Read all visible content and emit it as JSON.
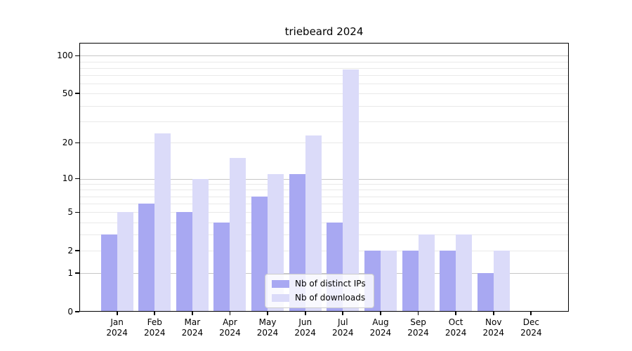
{
  "title": "triebeard 2024",
  "legend": [
    {
      "label": "Nb of distinct IPs",
      "color": "#a8a8f2"
    },
    {
      "label": "Nb of downloads",
      "color": "#dbdbf9"
    }
  ],
  "chart_data": {
    "type": "bar",
    "title": "triebeard 2024",
    "categories": [
      {
        "month": "Jan",
        "year": "2024"
      },
      {
        "month": "Feb",
        "year": "2024"
      },
      {
        "month": "Mar",
        "year": "2024"
      },
      {
        "month": "Apr",
        "year": "2024"
      },
      {
        "month": "May",
        "year": "2024"
      },
      {
        "month": "Jun",
        "year": "2024"
      },
      {
        "month": "Jul",
        "year": "2024"
      },
      {
        "month": "Aug",
        "year": "2024"
      },
      {
        "month": "Sep",
        "year": "2024"
      },
      {
        "month": "Oct",
        "year": "2024"
      },
      {
        "month": "Nov",
        "year": "2024"
      },
      {
        "month": "Dec",
        "year": "2024"
      }
    ],
    "series": [
      {
        "name": "Nb of distinct IPs",
        "color": "#a8a8f2",
        "values": [
          3,
          6,
          5,
          4,
          7,
          11,
          4,
          2,
          2,
          2,
          1,
          0
        ]
      },
      {
        "name": "Nb of downloads",
        "color": "#dbdbf9",
        "values": [
          5,
          24,
          10,
          15,
          11,
          23,
          78,
          2,
          3,
          3,
          2,
          0
        ]
      }
    ],
    "xlabel": "",
    "ylabel": "",
    "yscale": "symlog (pixel position proportional to ln(1+value))",
    "yticks": [
      0,
      1,
      2,
      5,
      10,
      20,
      50,
      100
    ],
    "major_grid_values": [
      1,
      10,
      100
    ],
    "minor_grid_values": [
      2,
      3,
      4,
      5,
      6,
      7,
      8,
      9,
      20,
      30,
      40,
      50,
      60,
      70,
      80,
      90
    ],
    "ylim": [
      0,
      127
    ],
    "grid": "horizontal",
    "legend_position": "lower center",
    "axis_color": "#000000",
    "major_grid_color": "#c6c6c6",
    "minor_grid_color": "#e9e9e9"
  }
}
